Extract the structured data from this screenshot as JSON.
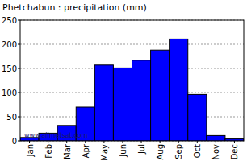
{
  "chart_data": {
    "type": "bar",
    "title": "Phetchabun : precipitation (mm)",
    "categories": [
      "Jan",
      "Feb",
      "Mar",
      "Apr",
      "May",
      "Jun",
      "Jul",
      "Aug",
      "Sep",
      "Oct",
      "Nov",
      "Dec"
    ],
    "values": [
      7,
      16,
      32,
      70,
      157,
      151,
      167,
      188,
      211,
      96,
      11,
      4
    ],
    "color": "#0000ff",
    "ylim": [
      0,
      250
    ],
    "yticks": [
      0,
      50,
      100,
      150,
      200,
      250
    ],
    "grid": true,
    "annotation": "www.allmetsat.com"
  }
}
